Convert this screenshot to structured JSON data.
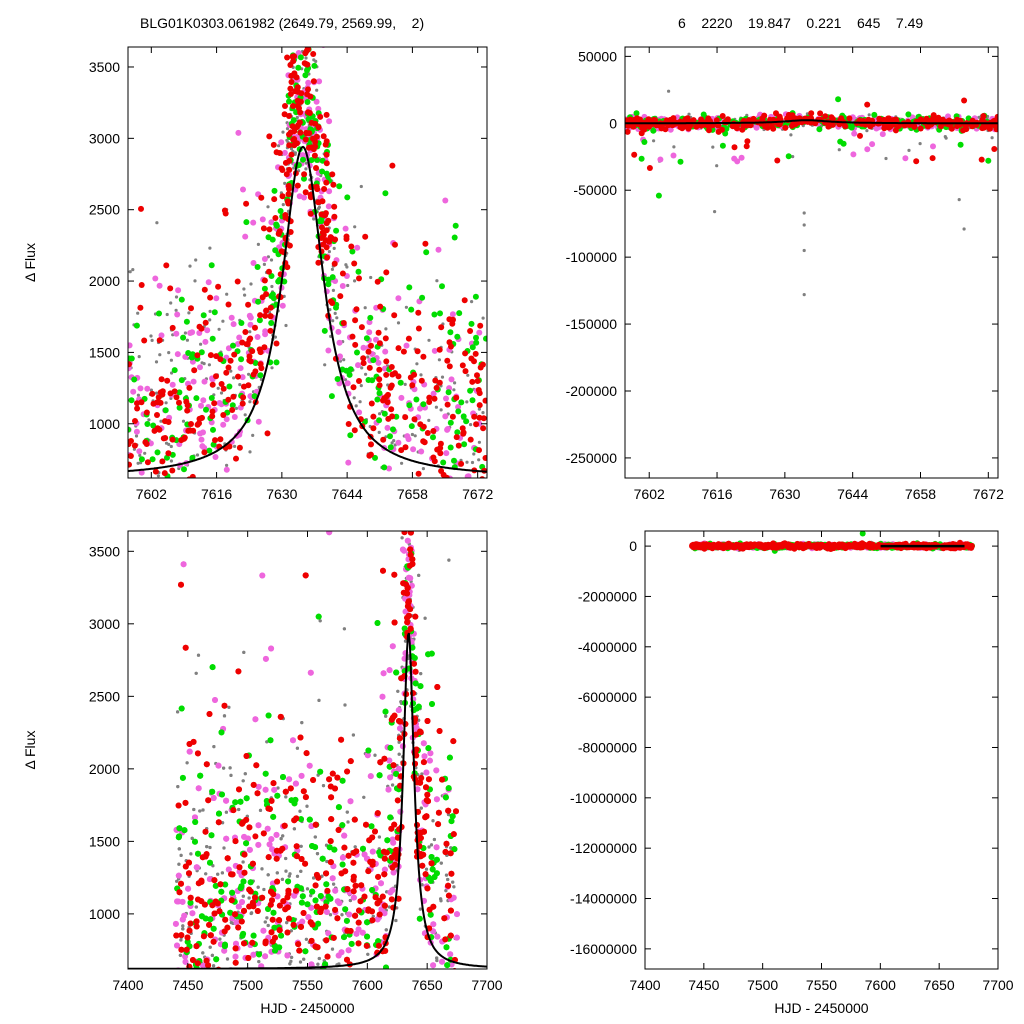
{
  "header": {
    "left": "BLG01K0303.061982 (2649.79, 2569.99,    2)",
    "right": "6    2220    19.847    0.221    645    7.49"
  },
  "colors": {
    "model": "#000000",
    "series": [
      "#808080",
      "#ee66dd",
      "#00dd00",
      "#ee0000"
    ]
  },
  "chart_data": [
    {
      "type": "scatter",
      "panel": "top-left",
      "xlim": [
        7597,
        7674
      ],
      "ylim": [
        620,
        3640
      ],
      "xticks": [
        7602,
        7616,
        7630,
        7644,
        7658,
        7672
      ],
      "yticks": [
        1000,
        1500,
        2000,
        2500,
        3000,
        3500
      ],
      "ytick_labels": [
        "1000",
        "1500",
        "2000",
        "2500",
        "3000",
        "3500"
      ],
      "xlabel": "",
      "ylabel": "Δ Flux",
      "model": {
        "t0": 7634.5,
        "peak": 2940,
        "base": 620,
        "width": 5.5
      }
    },
    {
      "type": "scatter",
      "panel": "top-right",
      "xlim": [
        7597,
        7674
      ],
      "ylim": [
        -265000,
        57000
      ],
      "xticks": [
        7602,
        7616,
        7630,
        7644,
        7658,
        7672
      ],
      "yticks": [
        -250000,
        -200000,
        -150000,
        -100000,
        -50000,
        0,
        50000
      ],
      "ytick_labels": [
        "-250000",
        "-200000",
        "-150000",
        "-100000",
        "-50000",
        "0",
        "50000"
      ],
      "xlabel": "",
      "ylabel": "",
      "model": {
        "t0": 7634.5,
        "peak": 2940,
        "base": 620,
        "width": 5.5
      }
    },
    {
      "type": "scatter",
      "panel": "bottom-left",
      "xlim": [
        7400,
        7700
      ],
      "ylim": [
        620,
        3640
      ],
      "xticks": [
        7400,
        7450,
        7500,
        7550,
        7600,
        7650,
        7700
      ],
      "yticks": [
        1000,
        1500,
        2000,
        2500,
        3000,
        3500
      ],
      "ytick_labels": [
        "1000",
        "1500",
        "2000",
        "2500",
        "3000",
        "3500"
      ],
      "xlabel": "HJD - 2450000",
      "ylabel": "Δ Flux",
      "model": {
        "t0": 7634.5,
        "peak": 2940,
        "base": 620,
        "width": 5.5
      }
    },
    {
      "type": "scatter",
      "panel": "bottom-right",
      "xlim": [
        7400,
        7700
      ],
      "ylim": [
        -16800000,
        600000
      ],
      "xticks": [
        7400,
        7450,
        7500,
        7550,
        7600,
        7650,
        7700
      ],
      "yticks": [
        -16000000,
        -14000000,
        -12000000,
        -10000000,
        -8000000,
        -6000000,
        -4000000,
        -2000000,
        0
      ],
      "ytick_labels": [
        "-16000000",
        "-14000000",
        "-12000000",
        "-10000000",
        "-8000000",
        "-6000000",
        "-4000000",
        "-2000000",
        "0"
      ],
      "xlabel": "HJD - 2450000",
      "ylabel": "",
      "model": {
        "t0": 7634.5,
        "peak": 2940,
        "base": 620,
        "width": 5.5
      }
    }
  ]
}
